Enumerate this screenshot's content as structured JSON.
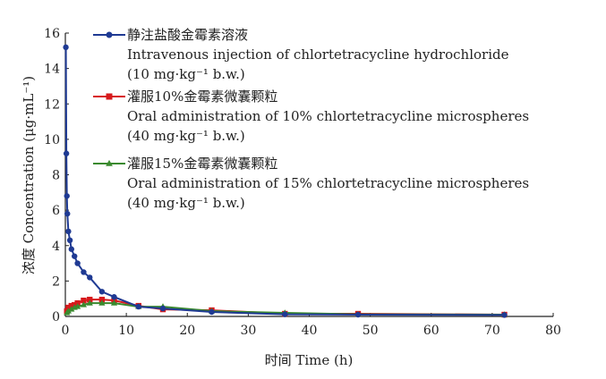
{
  "chart_data": {
    "type": "line",
    "xlabel": "时间 Time (h)",
    "ylabel": "浓度 Concentration (μg·mL⁻¹)",
    "xlim": [
      0,
      80
    ],
    "ylim": [
      0,
      16
    ],
    "x_ticks": [
      0,
      10,
      20,
      30,
      40,
      50,
      60,
      70,
      80
    ],
    "y_ticks": [
      0,
      2,
      4,
      6,
      8,
      10,
      12,
      14,
      16
    ],
    "grid": false,
    "legend_position": "top-center",
    "series": [
      {
        "name_lines": [
          "静注盐酸金霉素溶液",
          "Intravenous injection of chlortetracycline hydrochloride",
          "(10 mg·kg⁻¹ b.w.)"
        ],
        "color": "#1f3a93",
        "marker": "circle",
        "x": [
          0.083,
          0.167,
          0.25,
          0.33,
          0.5,
          0.75,
          1,
          1.5,
          2,
          3,
          4,
          6,
          8,
          12,
          16,
          24,
          36,
          48,
          72
        ],
        "y": [
          15.2,
          9.2,
          6.8,
          5.8,
          4.8,
          4.3,
          3.8,
          3.4,
          3.0,
          2.5,
          2.2,
          1.4,
          1.1,
          0.55,
          0.45,
          0.25,
          0.12,
          0.1,
          0.08
        ]
      },
      {
        "name_lines": [
          "灌服10%金霉素微囊颗粒",
          "Oral administration of 10%  chlortetracycline microspheres",
          "(40 mg·kg⁻¹ b.w.)"
        ],
        "color": "#d7191c",
        "marker": "square",
        "x": [
          0.25,
          0.5,
          1,
          1.5,
          2,
          3,
          4,
          6,
          8,
          12,
          16,
          24,
          36,
          48,
          72
        ],
        "y": [
          0.3,
          0.5,
          0.6,
          0.65,
          0.75,
          0.9,
          0.95,
          0.95,
          0.9,
          0.6,
          0.4,
          0.35,
          0.15,
          0.15,
          0.1
        ]
      },
      {
        "name_lines": [
          "灌服15%金霉素微囊颗粒",
          "Oral administration of 15%  chlortetracycline microspheres",
          "(40 mg·kg⁻¹ b.w.)"
        ],
        "color": "#3a8a2e",
        "marker": "triangle",
        "x": [
          0.25,
          0.5,
          1,
          1.5,
          2,
          3,
          4,
          6,
          8,
          12,
          16,
          24,
          36,
          48,
          72
        ],
        "y": [
          0.2,
          0.3,
          0.4,
          0.5,
          0.55,
          0.65,
          0.75,
          0.75,
          0.75,
          0.55,
          0.55,
          0.3,
          0.2,
          0.12,
          0.1
        ]
      }
    ]
  }
}
